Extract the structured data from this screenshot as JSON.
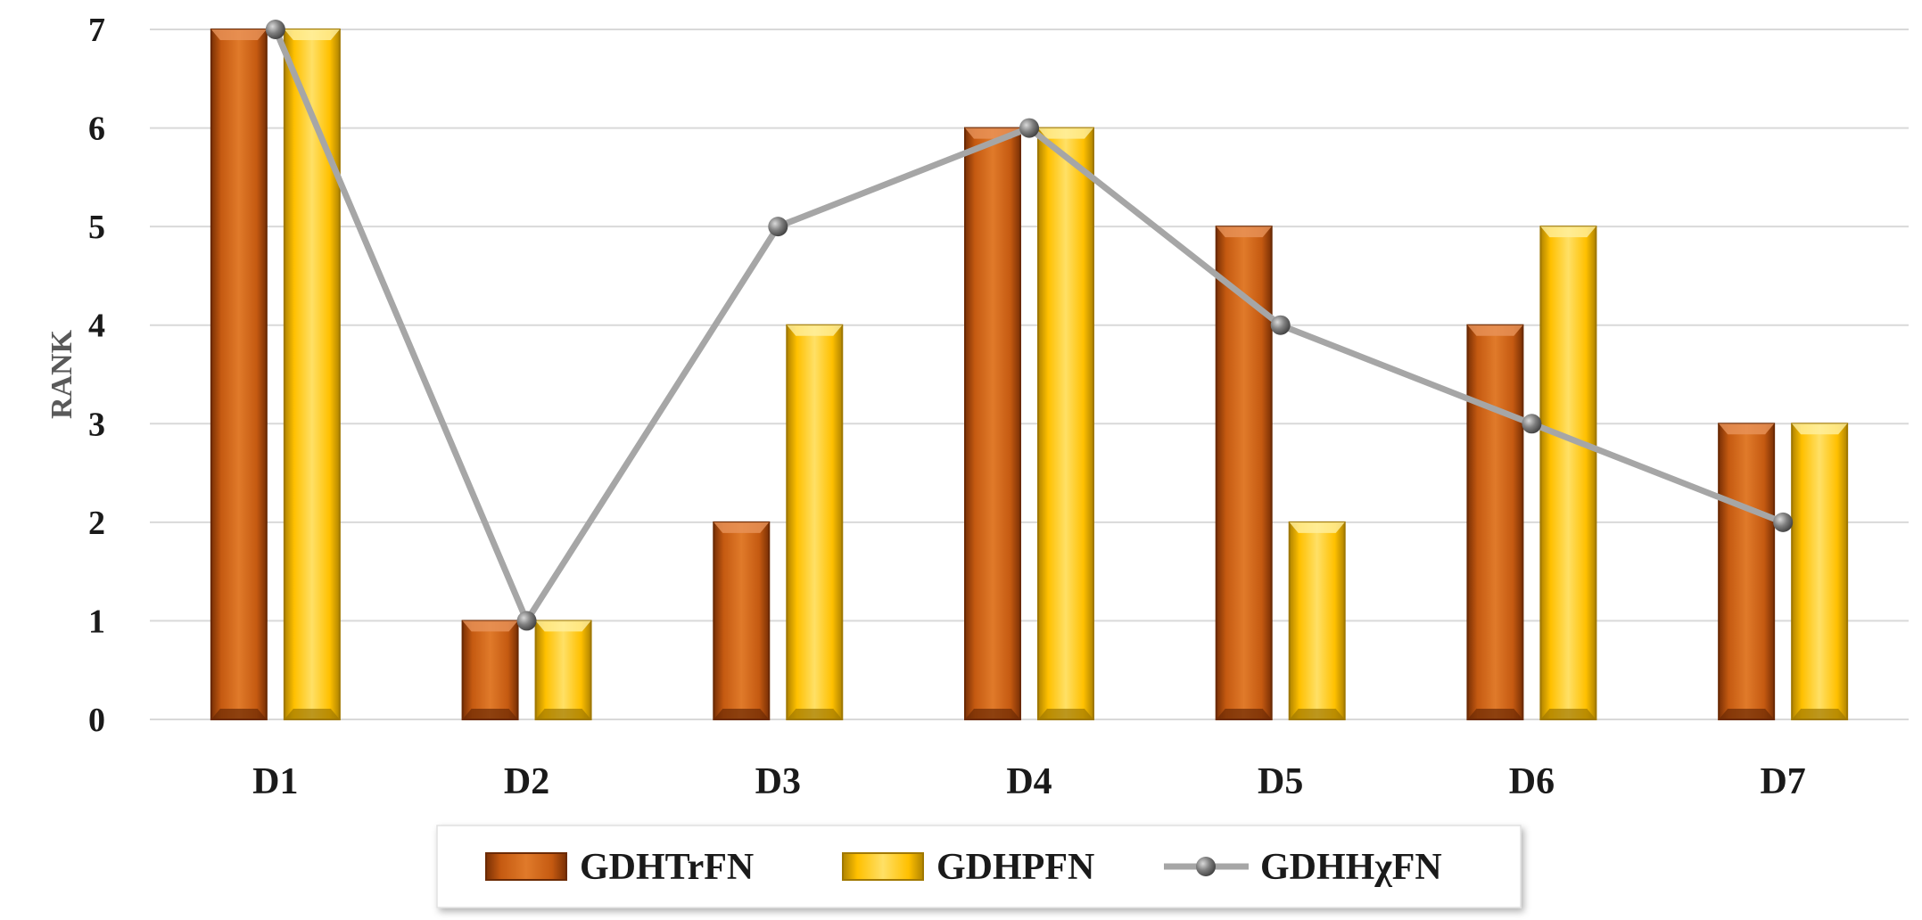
{
  "chart_data": {
    "type": "bar",
    "categories": [
      "D1",
      "D2",
      "D3",
      "D4",
      "D5",
      "D6",
      "D7"
    ],
    "series": [
      {
        "name": "GDHTrFN",
        "kind": "bar",
        "values": [
          7,
          1,
          2,
          6,
          5,
          4,
          3
        ],
        "color": "#C55A11"
      },
      {
        "name": "GDHPFN",
        "kind": "bar",
        "values": [
          7,
          1,
          4,
          6,
          2,
          5,
          3
        ],
        "color": "#FFC000"
      },
      {
        "name": "GDHHχFN",
        "kind": "line",
        "values": [
          7,
          1,
          5,
          6,
          4,
          3,
          2
        ],
        "color": "#A6A6A6"
      }
    ],
    "ylabel": "RANK",
    "xlabel": "",
    "ylim": [
      0,
      7
    ],
    "yticks": [
      "0",
      "1",
      "2",
      "3",
      "4",
      "5",
      "6",
      "7"
    ],
    "grid": true,
    "legend_position": "bottom"
  }
}
